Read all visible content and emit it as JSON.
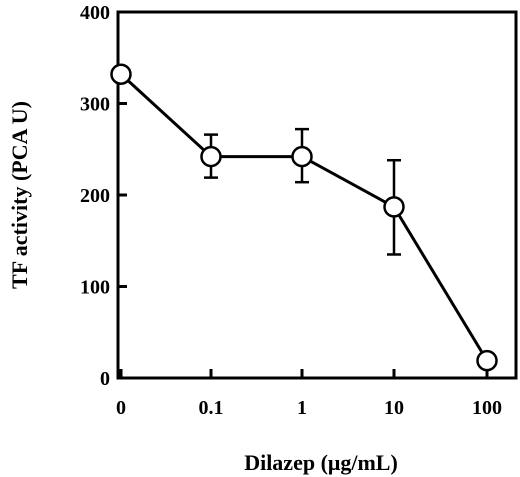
{
  "chart_data": {
    "type": "line",
    "xlabel": "Dilazep (μg/mL)",
    "ylabel": "TF activity (PCA U)",
    "x_scale": "categorical",
    "categories": [
      "0",
      "0.1",
      "1",
      "10",
      "100"
    ],
    "ylim": [
      0,
      400
    ],
    "yticks": [
      0,
      100,
      200,
      300,
      400
    ],
    "grid": false,
    "legend": "none",
    "series": [
      {
        "values": [
          332,
          242,
          242,
          187,
          19
        ],
        "error_upper": [
          332,
          266,
          272,
          238,
          19
        ],
        "error_lower": [
          332,
          219,
          214,
          135,
          19
        ],
        "marker": "open-circle",
        "color": "#000000"
      }
    ]
  }
}
